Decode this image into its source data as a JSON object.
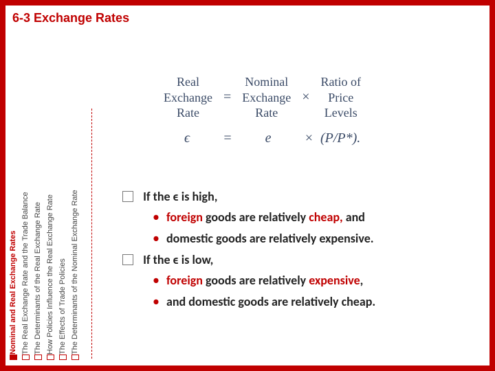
{
  "colors": {
    "accent": "#c00000",
    "text": "#222222",
    "eq": "#3a4a66"
  },
  "title": "6-3 Exchange Rates",
  "sidebar": {
    "items": [
      {
        "label": "Nominal and Real Exchange Rates",
        "active": true
      },
      {
        "label": "The Real Exchange Rate and the Trade Balance",
        "active": false
      },
      {
        "label": "The Determinants of the Real Exchange Rate",
        "active": false
      },
      {
        "label": "How Policies Influence the Real Exchange Rate",
        "active": false
      },
      {
        "label": "The Effects of Trade Policies",
        "active": false
      },
      {
        "label": "The Determinants of the Nominal Exchange Rate",
        "active": false
      }
    ]
  },
  "equation": {
    "terms": [
      {
        "l1": "Real",
        "l2": "Exchange",
        "l3": "Rate"
      },
      {
        "op": "="
      },
      {
        "l1": "Nominal",
        "l2": "Exchange",
        "l3": "Rate"
      },
      {
        "op": "×"
      },
      {
        "l1": "Ratio of",
        "l2": "Price",
        "l3": "Levels"
      }
    ],
    "formula": {
      "lhs": "ϵ",
      "eq": "=",
      "mid": "e",
      "times": "×",
      "rhs": "(P/P*)."
    }
  },
  "bullets": {
    "b1": {
      "pre": "If the ",
      "epsilon": "ϵ",
      "post": " is high,"
    },
    "b1a": {
      "w1": "foreign",
      "mid": " goods are relatively ",
      "w2": "cheap,",
      "post": " and"
    },
    "b1b": "domestic goods are relatively expensive.",
    "b2": {
      "pre": "If the ",
      "epsilon": "ϵ",
      "post": " is low,"
    },
    "b2a": {
      "w1": "foreign",
      "mid": " goods are relatively ",
      "w2": "expensive",
      "post": ","
    },
    "b2b": "and domestic goods are relatively cheap."
  }
}
